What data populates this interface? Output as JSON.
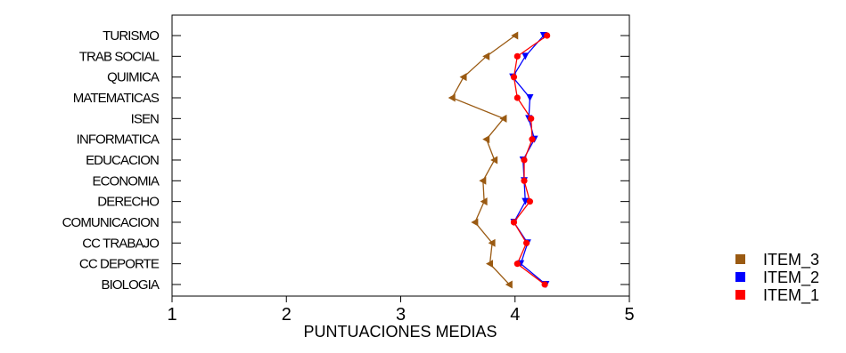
{
  "chart_data": {
    "type": "line",
    "orientation": "horizontal",
    "xlabel": "PUNTUACIONES MEDIAS",
    "xlim": [
      1,
      5
    ],
    "xticks": [
      "1",
      "2",
      "3",
      "4",
      "5"
    ],
    "categories": [
      "TURISMO",
      "TRAB SOCIAL",
      "QUIMICA",
      "MATEMATICAS",
      "ISEN",
      "INFORMATICA",
      "EDUCACION",
      "ECONOMIA",
      "DERECHO",
      "COMUNICACION",
      "CC TRABAJO",
      "CC DEPORTE",
      "BIOLOGIA"
    ],
    "series": [
      {
        "name": "ITEM_3",
        "color": "#9a5a12",
        "marker": "triangle-left",
        "values": [
          4.0,
          3.75,
          3.55,
          3.45,
          3.9,
          3.75,
          3.82,
          3.72,
          3.73,
          3.65,
          3.8,
          3.78,
          3.95
        ]
      },
      {
        "name": "ITEM_2",
        "color": "#0000ff",
        "marker": "triangle-down",
        "values": [
          4.25,
          4.09,
          3.98,
          4.13,
          4.12,
          4.17,
          4.07,
          4.08,
          4.09,
          3.99,
          4.11,
          4.05,
          4.27
        ]
      },
      {
        "name": "ITEM_1",
        "color": "#ff0000",
        "marker": "circle",
        "values": [
          4.28,
          4.02,
          3.99,
          4.02,
          4.14,
          4.15,
          4.08,
          4.08,
          4.13,
          3.99,
          4.1,
          4.02,
          4.26
        ]
      }
    ],
    "legend": {
      "placement": "right",
      "order": [
        "ITEM_3",
        "ITEM_2",
        "ITEM_1"
      ]
    }
  }
}
